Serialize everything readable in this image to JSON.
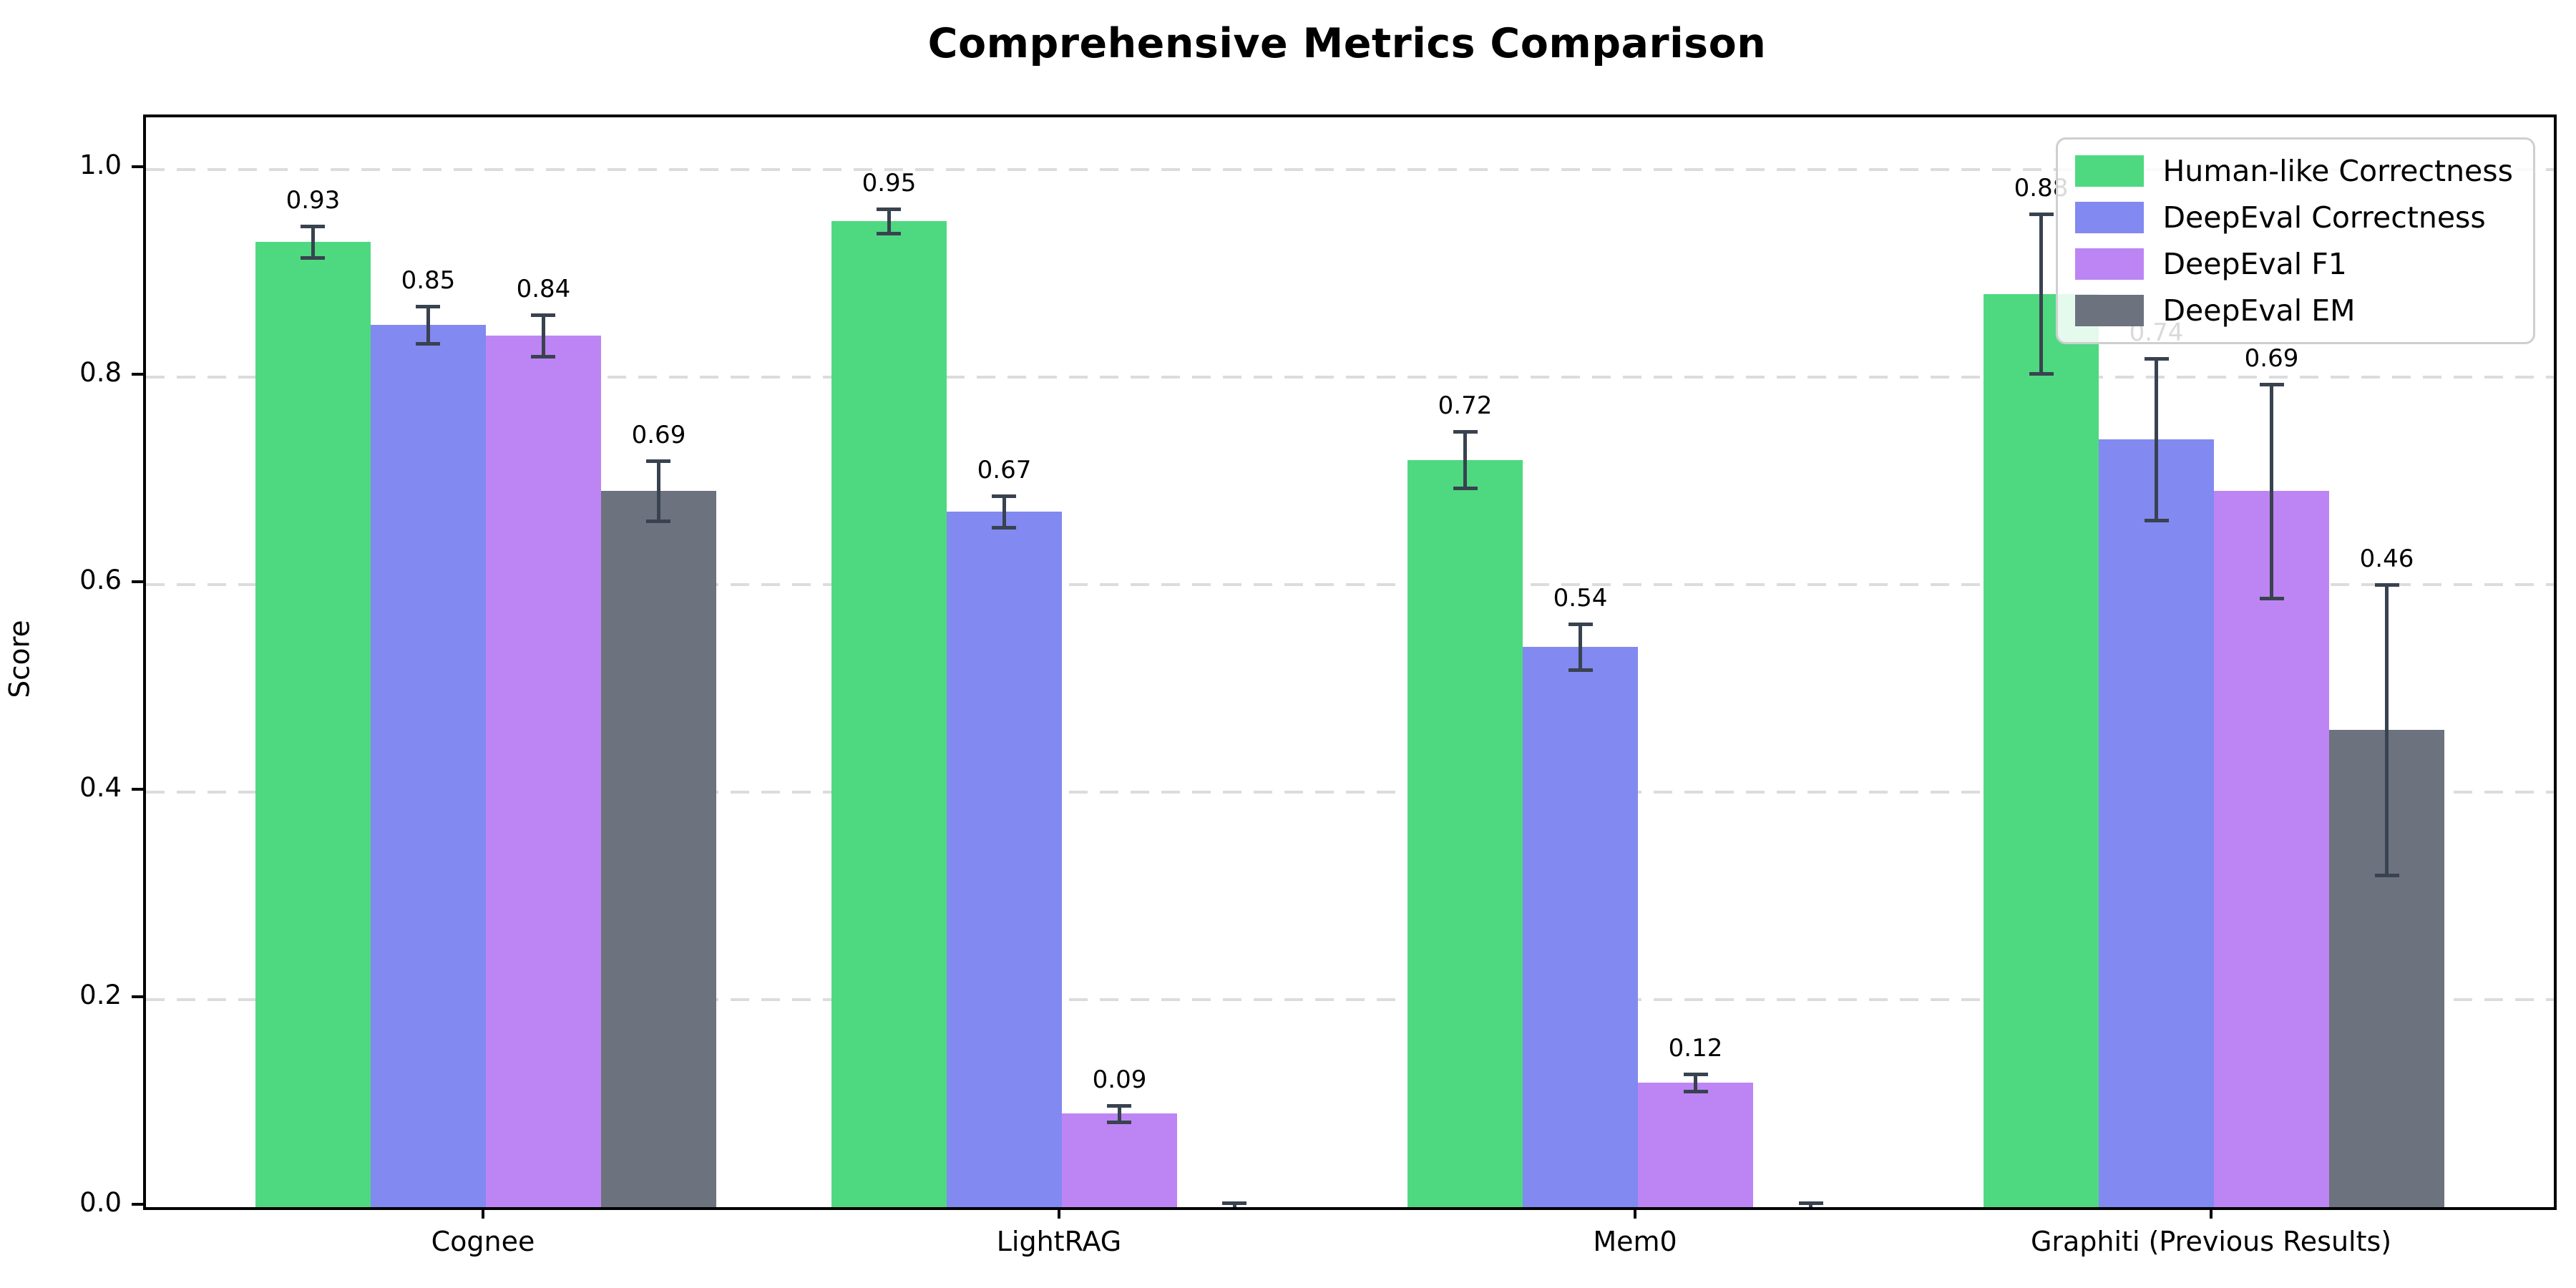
{
  "figure": {
    "title": "Comprehensive Metrics Comparison"
  },
  "chart_data": {
    "type": "bar",
    "title": "Comprehensive Metrics Comparison",
    "xlabel": "",
    "ylabel": "Score",
    "categories": [
      "Cognee",
      "LightRAG",
      "Mem0",
      "Graphiti (Previous Results)"
    ],
    "series": [
      {
        "name": "Human-like Correctness",
        "color": "#4ed981",
        "values": [
          0.93,
          0.95,
          0.72,
          0.88
        ],
        "errors": [
          0.015,
          0.012,
          0.027,
          0.077
        ],
        "labels": [
          "0.93",
          "0.95",
          "0.72",
          "0.88"
        ]
      },
      {
        "name": "DeepEval Correctness",
        "color": "#8289f0",
        "values": [
          0.85,
          0.67,
          0.54,
          0.74
        ],
        "errors": [
          0.018,
          0.015,
          0.022,
          0.078
        ],
        "labels": [
          "0.85",
          "0.67",
          "0.54",
          "0.74"
        ]
      },
      {
        "name": "DeepEval F1",
        "color": "#bd85f3",
        "values": [
          0.84,
          0.09,
          0.12,
          0.69
        ],
        "errors": [
          0.02,
          0.008,
          0.008,
          0.103
        ],
        "labels": [
          "0.84",
          "0.09",
          "0.12",
          "0.69"
        ]
      },
      {
        "name": "DeepEval EM",
        "color": "#6c727e",
        "values": [
          0.69,
          0.0,
          0.0,
          0.46
        ],
        "errors": [
          0.029,
          0.004,
          0.004,
          0.14
        ],
        "labels": [
          "0.69",
          "",
          "",
          "0.46"
        ]
      }
    ],
    "yticks": [
      {
        "value": 0.0,
        "label": "0.0"
      },
      {
        "value": 0.2,
        "label": "0.2"
      },
      {
        "value": 0.4,
        "label": "0.4"
      },
      {
        "value": 0.6,
        "label": "0.6"
      },
      {
        "value": 0.8,
        "label": "0.8"
      },
      {
        "value": 1.0,
        "label": "1.0"
      }
    ],
    "ylim": [
      0,
      1.05
    ],
    "xlim": [
      -0.59,
      3.59
    ],
    "bar_width": 0.2,
    "bar_offsets": [
      -0.3,
      -0.1,
      0.1,
      0.3
    ],
    "grid": "horizontal-dashed",
    "grid_color": "#dcdcdc",
    "errorbar_color": "#39424f",
    "legend_position": "upper right"
  }
}
